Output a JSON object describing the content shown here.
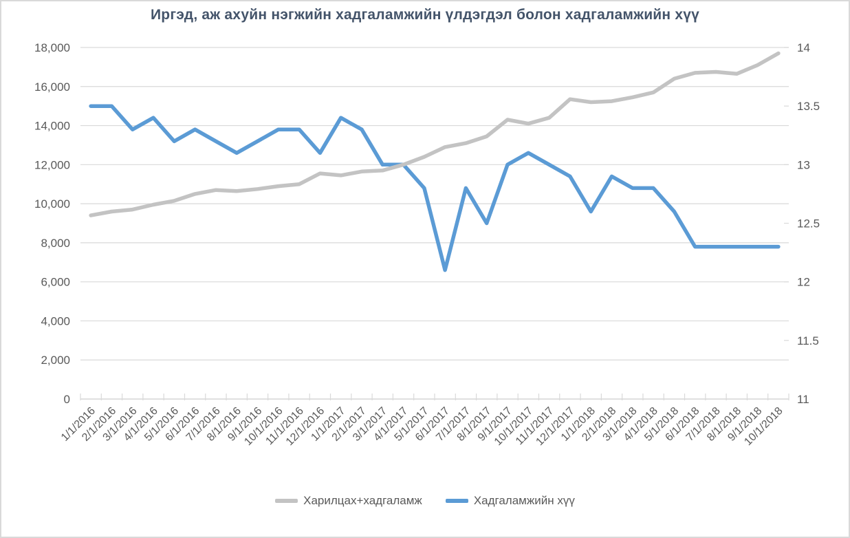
{
  "chart_data": {
    "type": "line",
    "title": "Иргэд, аж ахуйн нэгжийн хадгаламжийн үлдэгдэл болон хадгаламжийн хүү",
    "categories": [
      "1/1/2016",
      "2/1/2016",
      "3/1/2016",
      "4/1/2016",
      "5/1/2016",
      "6/1/2016",
      "7/1/2016",
      "8/1/2016",
      "9/1/2016",
      "10/1/2016",
      "11/1/2016",
      "12/1/2016",
      "1/1/2017",
      "2/1/2017",
      "3/1/2017",
      "4/1/2017",
      "5/1/2017",
      "6/1/2017",
      "7/1/2017",
      "8/1/2017",
      "9/1/2017",
      "10/1/2017",
      "11/1/2017",
      "12/1/2017",
      "1/1/2018",
      "2/1/2018",
      "3/1/2018",
      "4/1/2018",
      "5/1/2018",
      "6/1/2018",
      "7/1/2018",
      "8/1/2018",
      "9/1/2018",
      "10/1/2018"
    ],
    "series": [
      {
        "name": "Харилцах+хадгаламж",
        "axis": "left",
        "color": "#c3c3c3",
        "values": [
          9400,
          9600,
          9700,
          9950,
          10150,
          10500,
          10700,
          10650,
          10750,
          10900,
          11000,
          11550,
          11450,
          11650,
          11700,
          12000,
          12400,
          12900,
          13100,
          13450,
          14300,
          14100,
          14400,
          15350,
          15200,
          15250,
          15450,
          15700,
          16400,
          16700,
          16750,
          16650,
          17100,
          17700
        ]
      },
      {
        "name": "Хадгаламжийн хүү",
        "axis": "right",
        "color": "#5b9bd5",
        "values": [
          13.5,
          13.5,
          13.3,
          13.4,
          13.2,
          13.3,
          13.2,
          13.1,
          13.2,
          13.3,
          13.3,
          13.1,
          13.4,
          13.3,
          13.0,
          13.0,
          12.8,
          12.1,
          12.8,
          12.5,
          13.0,
          13.1,
          13.0,
          12.9,
          12.6,
          12.9,
          12.8,
          12.8,
          12.6,
          12.3,
          12.3,
          12.3,
          12.3,
          12.3
        ]
      }
    ],
    "left_axis": {
      "min": 0,
      "max": 18000,
      "step": 2000,
      "tick_labels": [
        "0",
        "2,000",
        "4,000",
        "6,000",
        "8,000",
        "10,000",
        "12,000",
        "14,000",
        "16,000",
        "18,000"
      ]
    },
    "right_axis": {
      "min": 11,
      "max": 14,
      "step": 0.5,
      "tick_labels": [
        "11",
        "11.5",
        "12",
        "12.5",
        "13",
        "13.5",
        "14"
      ]
    },
    "grid": true,
    "legend_position": "bottom",
    "styles": {
      "grid_color": "#d9d9d9",
      "axis_text_color": "#595959",
      "title_color": "#44546a",
      "background": "#ffffff",
      "border_color": "#d9d9d9"
    }
  }
}
